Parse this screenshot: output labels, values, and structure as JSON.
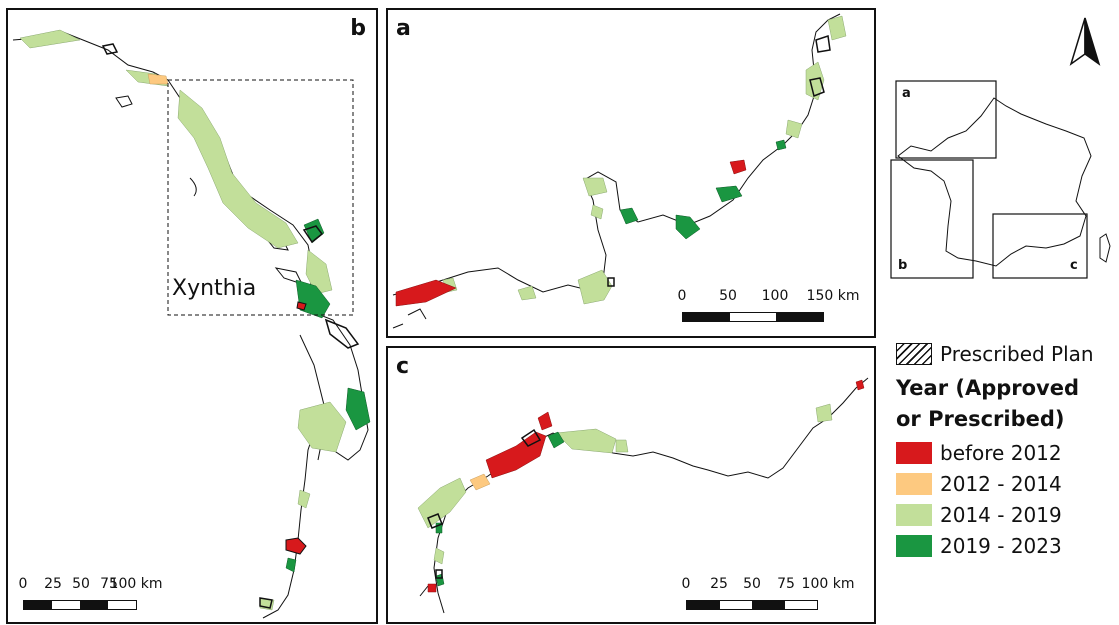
{
  "panels": {
    "a": {
      "label": "a",
      "scale_ticks": [
        "0",
        "50",
        "100",
        "150 km"
      ]
    },
    "b": {
      "label": "b",
      "scale_ticks": [
        "0",
        "25",
        "50",
        "75",
        "100 km"
      ],
      "annotation": "Xynthia"
    },
    "c": {
      "label": "c",
      "scale_ticks": [
        "0",
        "25",
        "50",
        "75",
        "100 km"
      ]
    }
  },
  "overview": {
    "labels": [
      "a",
      "b",
      "c"
    ],
    "north_icon": "north-arrow-icon"
  },
  "legend": {
    "prescribed_label": "Prescribed Plan",
    "title_line1": "Year (Approved",
    "title_line2": "or Prescribed)",
    "items": [
      {
        "label": "before 2012",
        "color": "#d7191c"
      },
      {
        "label": "2012 - 2014",
        "color": "#fdc980"
      },
      {
        "label": "2014 - 2019",
        "color": "#c2df9a"
      },
      {
        "label": "2019 - 2023",
        "color": "#1a9641"
      }
    ]
  }
}
